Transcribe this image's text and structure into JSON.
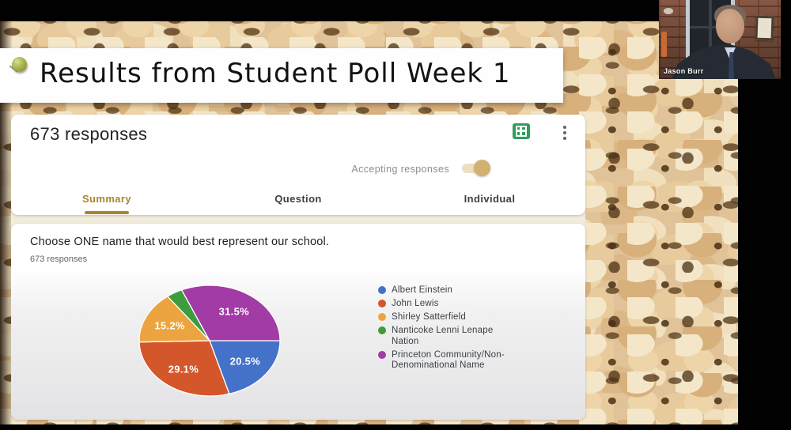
{
  "slide": {
    "title": "Results from Student Poll Week 1"
  },
  "form_header": {
    "responses_count": "673 responses",
    "accepting_label": "Accepting responses",
    "accepting_on": true,
    "tabs": [
      {
        "label": "Summary",
        "active": true
      },
      {
        "label": "Question",
        "active": false
      },
      {
        "label": "Individual",
        "active": false
      }
    ],
    "icons": {
      "sheets": "view-responses-in-sheets-icon",
      "more": "more-options-icon"
    },
    "accent_color": "#a8862f",
    "toggle_color": "#d2b273"
  },
  "question_card": {
    "question": "Choose ONE name that would best represent our school.",
    "responses_label": "673 responses"
  },
  "chart_data": {
    "type": "pie",
    "title": "Choose ONE name that would best represent our school.",
    "categories": [
      "Albert Einstein",
      "John Lewis",
      "Shirley Satterfield",
      "Nanticoke Lenni Lenape Nation",
      "Princeton Community/Non-Denominational Name"
    ],
    "values_percent": [
      20.5,
      29.1,
      15.2,
      3.7,
      31.5
    ],
    "slice_labels": [
      "20.5%",
      "29.1%",
      "15.2%",
      "",
      "31.5%"
    ],
    "colors": [
      "#4472c9",
      "#d4562b",
      "#eca440",
      "#3d9c3d",
      "#a23ba5"
    ],
    "legend_position": "right",
    "start_angle_deg": 0,
    "direction": "clockwise",
    "total_responses": 673
  },
  "video": {
    "presenter_name": "Jason Burr"
  }
}
